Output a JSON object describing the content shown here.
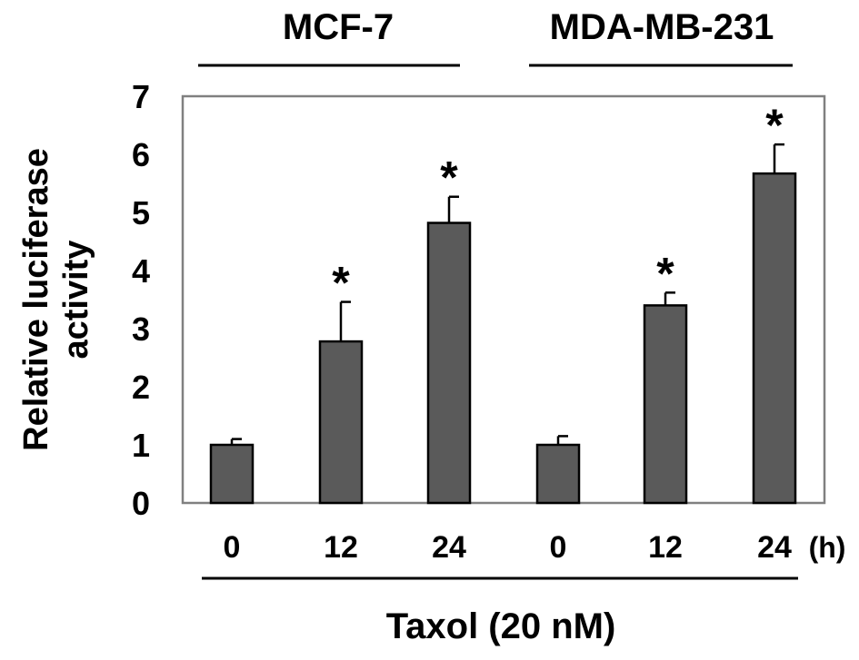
{
  "chart_data": {
    "type": "bar",
    "groups": [
      "MCF-7",
      "MDA-MB-231"
    ],
    "categories": [
      "0",
      "12",
      "24",
      "0",
      "12",
      "24"
    ],
    "category_group": [
      "MCF-7",
      "MCF-7",
      "MCF-7",
      "MDA-MB-231",
      "MDA-MB-231",
      "MDA-MB-231"
    ],
    "values": [
      1.0,
      2.78,
      4.82,
      1.0,
      3.4,
      5.67
    ],
    "errors": [
      0.1,
      0.68,
      0.45,
      0.15,
      0.22,
      0.5
    ],
    "significance": [
      "",
      "*",
      "*",
      "",
      "*",
      "*"
    ],
    "x_unit": "(h)",
    "xlabel": "Taxol (20 nM)",
    "ylabel_lines": [
      "Relative luciferase",
      "activity"
    ],
    "ylim": [
      0,
      7
    ],
    "yticks": [
      "0",
      "1",
      "2",
      "3",
      "4",
      "5",
      "6",
      "7"
    ],
    "grid": false,
    "legend": "none",
    "colors": {
      "bar_fill": "#5a5a5a",
      "bar_stroke": "#000000",
      "axis": "#808080",
      "text": "#000000"
    }
  }
}
